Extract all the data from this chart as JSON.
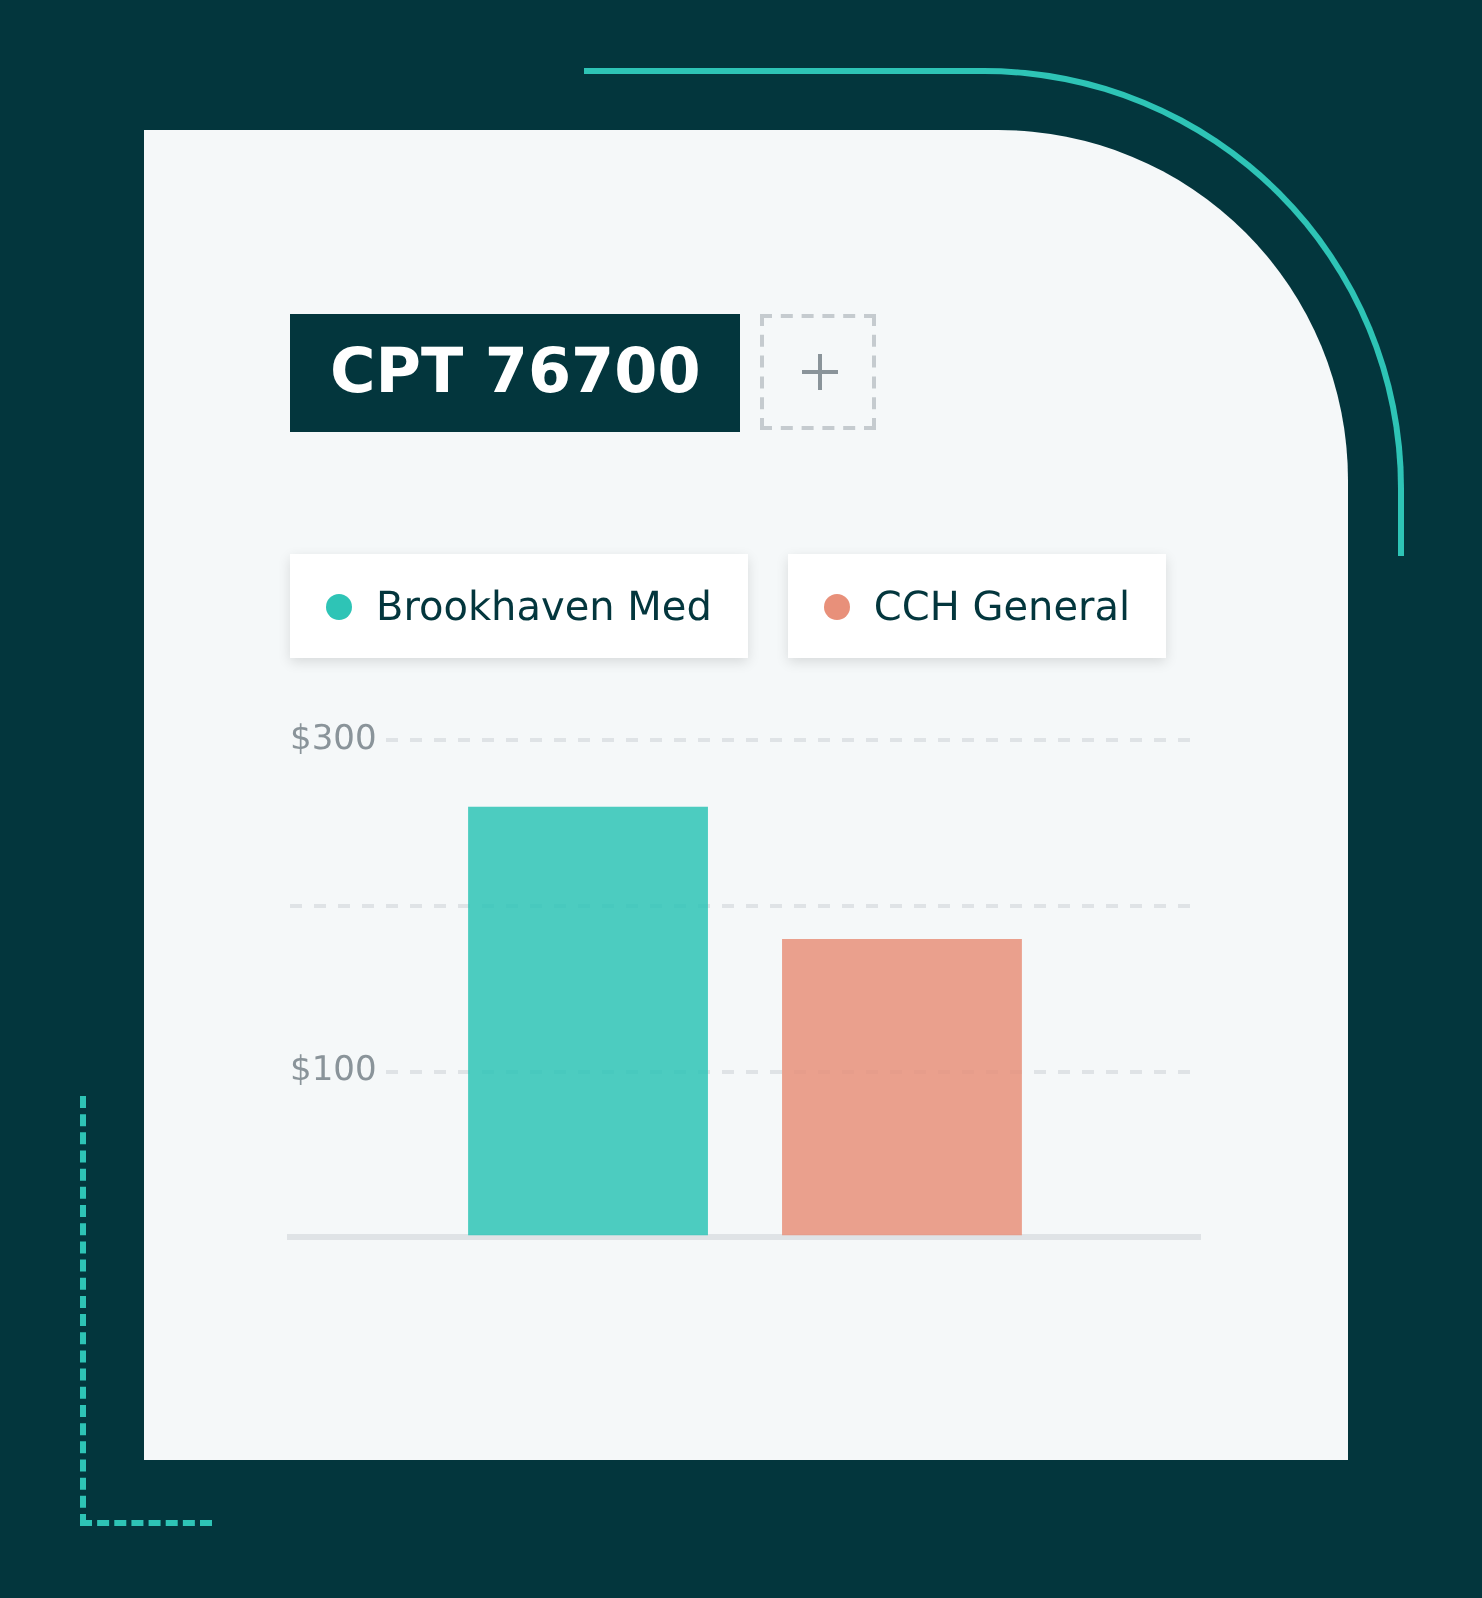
{
  "chart_data": {
    "type": "bar",
    "title": "CPT 76700",
    "categories": [
      null
    ],
    "series": [
      {
        "name": "Brookhaven Med",
        "color": "#2ec4b6",
        "values": [
          260
        ]
      },
      {
        "name": "CCH General",
        "color": "#e8907a",
        "values": [
          180
        ]
      }
    ],
    "ylim": [
      0,
      300
    ],
    "yticks": [
      {
        "value": 0,
        "label": null
      },
      {
        "value": 100,
        "label": "$100"
      },
      {
        "value": 200,
        "label": null
      },
      {
        "value": 300,
        "label": "$300"
      }
    ],
    "grid": "y",
    "legend": "top left"
  }
}
